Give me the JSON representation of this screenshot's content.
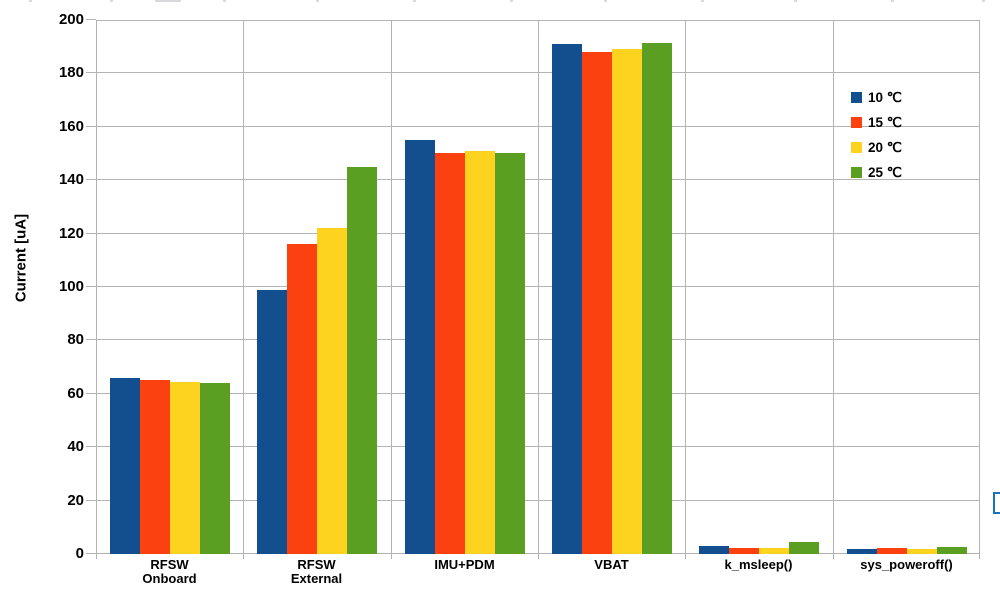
{
  "chart_data": {
    "type": "bar",
    "title": "",
    "xlabel": "",
    "ylabel": "Current [uA]",
    "ylim": [
      0,
      200
    ],
    "ytick_step": 20,
    "grid": true,
    "legend_position": "inside-top-right",
    "categories": [
      "RFSW Onboard",
      "RFSW External",
      "IMU+PDM",
      "VBAT",
      "k_msleep()",
      "sys_poweroff()"
    ],
    "category_label_lines": [
      [
        "RFSW",
        "Onboard"
      ],
      [
        "RFSW",
        "External"
      ],
      [
        "IMU+PDM"
      ],
      [
        "VBAT"
      ],
      [
        "k_msleep()"
      ],
      [
        "sys_poweroff()"
      ]
    ],
    "series": [
      {
        "name": "10 ℃",
        "color": "#134f8f",
        "values": [
          66,
          99,
          155,
          191,
          3,
          1.9
        ]
      },
      {
        "name": "15 ℃",
        "color": "#fc4111",
        "values": [
          65,
          116,
          150,
          188,
          2.2,
          2.1
        ]
      },
      {
        "name": "20 ℃",
        "color": "#fdd320",
        "values": [
          64.5,
          122,
          151,
          189,
          2.2,
          1.9
        ]
      },
      {
        "name": "25 ℃",
        "color": "#5a9e22",
        "values": [
          64,
          145,
          150,
          191.5,
          4.4,
          2.7
        ]
      }
    ],
    "axis_color": "#b3b3b3",
    "text_color": "#000000"
  },
  "artifacts": {
    "right_edge_marker_color": "#1a73c0"
  }
}
